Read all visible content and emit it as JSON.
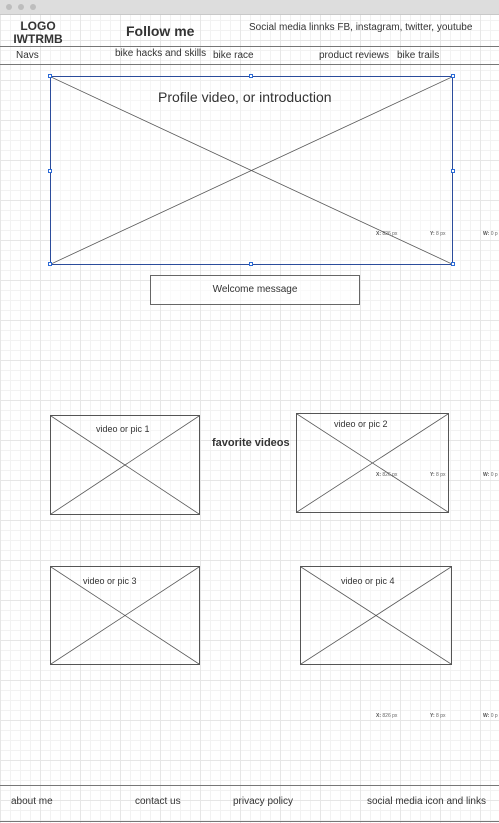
{
  "window": {
    "controls": [
      "close",
      "minimize",
      "maximize"
    ]
  },
  "header": {
    "logo": "LOGO\nIWTRMB",
    "follow": "Follow me",
    "social": "Social media  linnks FB, instagram, twitter, youtube"
  },
  "nav": {
    "label": "Navs",
    "items": [
      "bike hacks and skills",
      "bike race",
      "product reviews",
      "bike trails"
    ]
  },
  "hero": {
    "caption": "Profile video, or introduction"
  },
  "welcome": "Welcome message",
  "favorites": {
    "label": "favorite videos",
    "items": [
      "video or pic 1",
      "video or pic 2",
      "video or pic 3",
      "video or pic 4"
    ]
  },
  "coords": {
    "x": "826 px",
    "y": "8 px",
    "w": "0 p",
    "x_label": "X:",
    "y_label": "Y:",
    "w_label": "W:"
  },
  "footer": [
    "about me",
    "contact us",
    "privacy policy",
    "social media icon and links"
  ]
}
